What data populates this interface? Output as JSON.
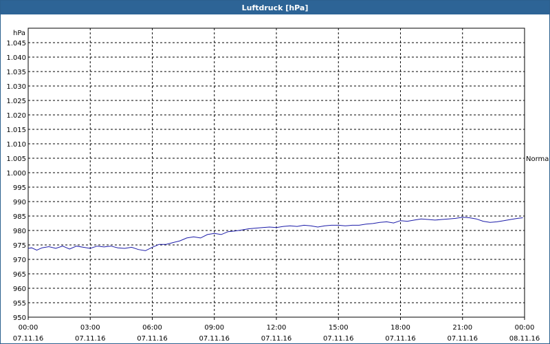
{
  "window": {
    "title": "Luftdruck [hPa]"
  },
  "chart_data": {
    "type": "line",
    "title": "Luftdruck [hPa]",
    "ylabel": "hPa",
    "ylim": [
      950,
      1050
    ],
    "yticks": [
      "950",
      "955",
      "960",
      "965",
      "970",
      "975",
      "980",
      "985",
      "990",
      "995",
      "1.000",
      "1.005",
      "1.010",
      "1.015",
      "1.020",
      "1.025",
      "1.030",
      "1.035",
      "1.040",
      "1.045"
    ],
    "xticks": [
      {
        "time": "00:00",
        "date": "07.11.16"
      },
      {
        "time": "03:00",
        "date": "07.11.16"
      },
      {
        "time": "06:00",
        "date": "07.11.16"
      },
      {
        "time": "09:00",
        "date": "07.11.16"
      },
      {
        "time": "12:00",
        "date": "07.11.16"
      },
      {
        "time": "15:00",
        "date": "07.11.16"
      },
      {
        "time": "18:00",
        "date": "07.11.16"
      },
      {
        "time": "21:00",
        "date": "07.11.16"
      },
      {
        "time": "00:00",
        "date": "08.11.16"
      }
    ],
    "reference_line": {
      "label": "Normal",
      "value": 1005
    },
    "grid": true,
    "series": [
      {
        "color": "#1a1aa8",
        "x": [
          "00:00",
          "00:10",
          "00:25",
          "00:40",
          "01:00",
          "01:20",
          "01:40",
          "02:00",
          "02:20",
          "02:40",
          "03:00",
          "03:20",
          "03:40",
          "04:00",
          "04:20",
          "04:40",
          "05:00",
          "05:20",
          "05:40",
          "06:00",
          "06:20",
          "06:40",
          "07:00",
          "07:20",
          "07:40",
          "08:00",
          "08:20",
          "08:40",
          "09:00",
          "09:20",
          "09:40",
          "10:00",
          "10:20",
          "10:40",
          "11:00",
          "11:20",
          "11:40",
          "12:00",
          "12:20",
          "12:40",
          "13:00",
          "13:20",
          "13:40",
          "14:00",
          "14:20",
          "14:40",
          "15:00",
          "15:20",
          "15:40",
          "16:00",
          "16:20",
          "16:40",
          "17:00",
          "17:20",
          "17:40",
          "18:00",
          "18:20",
          "18:40",
          "19:00",
          "19:20",
          "19:40",
          "20:00",
          "20:20",
          "20:40",
          "21:00",
          "21:20",
          "21:40",
          "22:00",
          "22:20",
          "22:40",
          "23:00",
          "23:20",
          "23:40",
          "23:55"
        ],
        "values": [
          973.8,
          974.0,
          973.2,
          974.0,
          974.4,
          973.8,
          974.6,
          973.6,
          974.6,
          974.2,
          973.8,
          974.6,
          974.3,
          974.6,
          974.0,
          973.8,
          974.2,
          973.4,
          973.0,
          974.2,
          975.2,
          975.2,
          975.8,
          976.4,
          977.4,
          977.8,
          977.4,
          978.6,
          979.0,
          978.6,
          979.6,
          979.8,
          980.2,
          980.6,
          980.8,
          981.0,
          981.2,
          981.0,
          981.4,
          981.6,
          981.4,
          981.8,
          981.6,
          981.2,
          981.6,
          981.8,
          981.8,
          981.6,
          981.8,
          981.8,
          982.2,
          982.4,
          982.8,
          983.0,
          982.6,
          983.4,
          983.2,
          983.6,
          984.0,
          983.8,
          983.6,
          983.8,
          984.0,
          984.2,
          984.6,
          984.4,
          984.0,
          983.2,
          982.8,
          983.0,
          983.4,
          983.8,
          984.2,
          984.4
        ]
      }
    ]
  }
}
